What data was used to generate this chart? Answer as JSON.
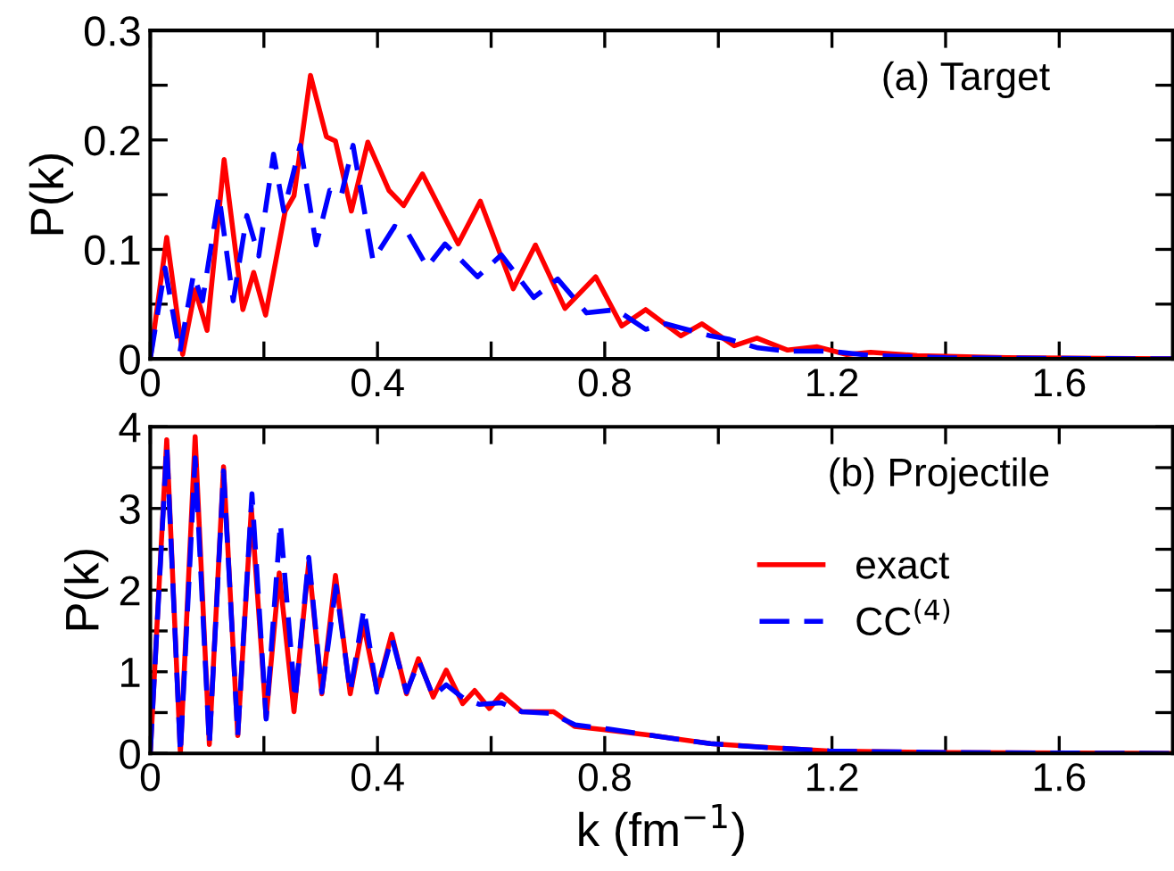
{
  "chart_data": [
    {
      "type": "line",
      "ylabel": "P(k)",
      "annotations": [
        "(a) Target"
      ],
      "xlim": [
        0,
        1.8
      ],
      "ylim": [
        0,
        0.3
      ],
      "xticks": [
        0,
        {
          "value": 0.2,
          "label": null
        },
        0.4,
        {
          "value": 0.6,
          "label": null
        },
        0.8,
        {
          "value": 1.0,
          "label": null
        },
        1.2,
        {
          "value": 1.4,
          "label": null
        },
        1.6
      ],
      "yticks": [
        0,
        {
          "value": 0.05,
          "label": null
        },
        0.1,
        {
          "value": 0.15,
          "label": null
        },
        0.2,
        {
          "value": 0.25,
          "label": null
        },
        0.3
      ],
      "grid": false,
      "legend": false,
      "series": [
        {
          "color": "#ff0000",
          "line_style": "solid",
          "x": [
            0,
            0.029,
            0.057,
            0.079,
            0.1,
            0.13,
            0.163,
            0.182,
            0.203,
            0.2375,
            0.253,
            0.282,
            0.31,
            0.326,
            0.354,
            0.383,
            0.42,
            0.446,
            0.479,
            0.542,
            0.581,
            0.639,
            0.678,
            0.73,
            0.784,
            0.83,
            0.872,
            0.934,
            0.971,
            1.028,
            1.068,
            1.122,
            1.174,
            1.226,
            1.268,
            1.35,
            1.507,
            1.8
          ],
          "values": [
            0,
            0.111,
            0.004,
            0.063,
            0.026,
            0.182,
            0.045,
            0.079,
            0.04,
            0.135,
            0.149,
            0.259,
            0.203,
            0.199,
            0.135,
            0.198,
            0.154,
            0.14,
            0.169,
            0.105,
            0.144,
            0.064,
            0.104,
            0.046,
            0.075,
            0.03,
            0.045,
            0.021,
            0.032,
            0.012,
            0.019,
            0.008,
            0.011,
            0.004,
            0.006,
            0.003,
            0.001,
            0
          ]
        },
        {
          "color": "#0000ff",
          "line_style": "dashed",
          "x": [
            0,
            0.026,
            0.052,
            0.076,
            0.092,
            0.121,
            0.146,
            0.17,
            0.191,
            0.217,
            0.235,
            0.264,
            0.292,
            0.316,
            0.336,
            0.357,
            0.392,
            0.43,
            0.451,
            0.4875,
            0.519,
            0.576,
            0.618,
            0.675,
            0.717,
            0.768,
            0.82,
            0.872,
            0.908,
            0.986,
            1.018,
            1.07,
            1.122,
            1.195,
            1.268,
            1.4,
            1.8
          ],
          "values": [
            0,
            0.083,
            0.006,
            0.077,
            0.053,
            0.149,
            0.053,
            0.131,
            0.094,
            0.187,
            0.135,
            0.195,
            0.104,
            0.154,
            0.149,
            0.195,
            0.09,
            0.121,
            0.117,
            0.084,
            0.105,
            0.075,
            0.095,
            0.056,
            0.073,
            0.042,
            0.045,
            0.027,
            0.032,
            0.021,
            0.018,
            0.01,
            0.007,
            0.007,
            0.003,
            0.001,
            0
          ]
        }
      ]
    },
    {
      "type": "line",
      "xlabel": "k (fm$^{−1}$)",
      "ylabel": "P(k)",
      "annotations": [
        "(b) Projectile"
      ],
      "xlim": [
        0,
        1.8
      ],
      "ylim": [
        0,
        4
      ],
      "xticks": [
        0,
        {
          "value": 0.2,
          "label": null
        },
        0.4,
        {
          "value": 0.6,
          "label": null
        },
        0.8,
        {
          "value": 1.0,
          "label": null
        },
        1.2,
        {
          "value": 1.4,
          "label": null
        },
        1.6
      ],
      "yticks": [
        0,
        {
          "value": 0.5,
          "label": null
        },
        1,
        {
          "value": 1.5,
          "label": null
        },
        2,
        {
          "value": 2.5,
          "label": null
        },
        3,
        {
          "value": 3.5,
          "label": null
        },
        4
      ],
      "grid": false,
      "legend": "right",
      "series": [
        {
          "name": "exact",
          "color": "#ff0000",
          "line_style": "solid",
          "x": [
            0,
            0.029,
            0.053,
            0.079,
            0.104,
            0.129,
            0.154,
            0.178,
            0.204,
            0.227,
            0.253,
            0.279,
            0.302,
            0.326,
            0.352,
            0.375,
            0.399,
            0.425,
            0.451,
            0.472,
            0.498,
            0.521,
            0.55,
            0.571,
            0.597,
            0.618,
            0.654,
            0.71,
            0.747,
            0.8,
            0.882,
            0.986,
            1.09,
            1.195,
            1.4,
            1.8
          ],
          "values": [
            0,
            3.84,
            0,
            3.88,
            0.11,
            3.51,
            0.22,
            3.0,
            0.44,
            2.21,
            0.51,
            2.34,
            0.73,
            2.18,
            0.73,
            1.59,
            0.77,
            1.46,
            0.73,
            1.16,
            0.69,
            1.02,
            0.61,
            0.77,
            0.55,
            0.72,
            0.51,
            0.51,
            0.33,
            0.29,
            0.22,
            0.12,
            0.07,
            0.03,
            0.01,
            0
          ]
        },
        {
          "name": "CC$^{(4)}$",
          "color": "#0000ff",
          "line_style": "dashed",
          "x": [
            0,
            0.029,
            0.053,
            0.079,
            0.104,
            0.129,
            0.154,
            0.179,
            0.204,
            0.229,
            0.255,
            0.279,
            0.302,
            0.327,
            0.352,
            0.376,
            0.399,
            0.425,
            0.451,
            0.473,
            0.498,
            0.521,
            0.554,
            0.58,
            0.618,
            0.654,
            0.706,
            0.748,
            0.805,
            0.882,
            0.986,
            1.09,
            1.195,
            1.4,
            1.8
          ],
          "values": [
            0,
            3.77,
            0,
            3.62,
            0.1,
            3.46,
            0.22,
            3.18,
            0.42,
            2.82,
            0.66,
            2.4,
            0.75,
            2.05,
            0.75,
            1.77,
            0.75,
            1.42,
            0.75,
            1.13,
            0.7,
            0.84,
            0.66,
            0.6,
            0.62,
            0.51,
            0.49,
            0.35,
            0.3,
            0.22,
            0.12,
            0.07,
            0.03,
            0.01,
            0
          ]
        }
      ]
    }
  ]
}
